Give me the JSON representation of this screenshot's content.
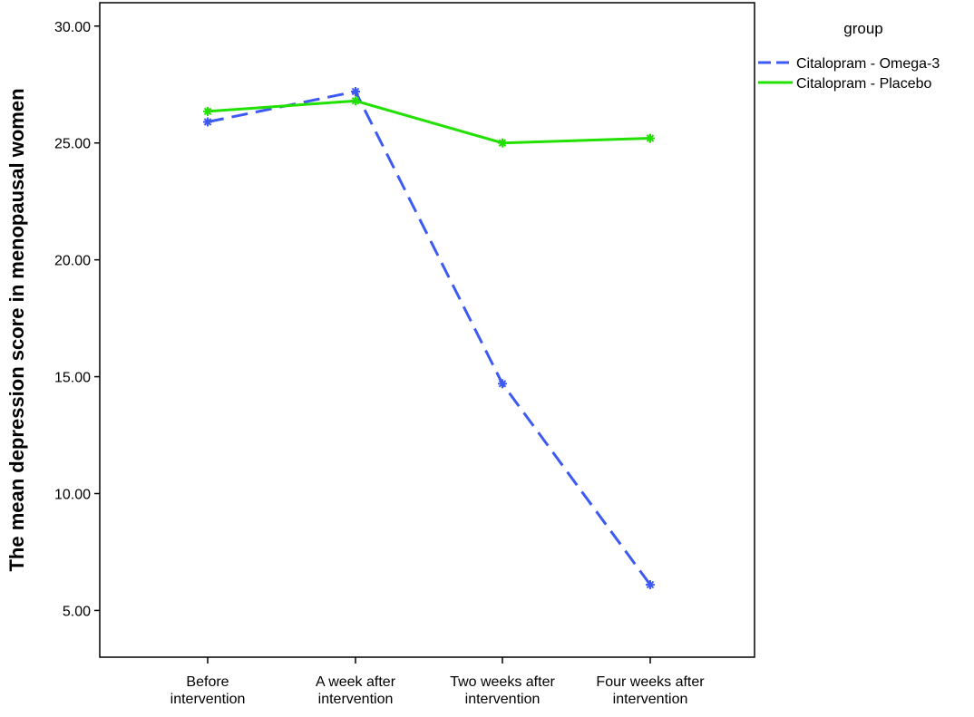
{
  "chart_data": {
    "type": "line",
    "categories": [
      [
        "Before",
        "intervention"
      ],
      [
        "A week after",
        "intervention"
      ],
      [
        "Two weeks after",
        "intervention"
      ],
      [
        "Four weeks after",
        "intervention"
      ]
    ],
    "ylabel": "The mean depression score in menopausal women",
    "xlabel": "",
    "ylim": [
      3.0,
      31.0
    ],
    "yticks": [
      "5.00",
      "10.00",
      "15.00",
      "20.00",
      "25.00",
      "30.00"
    ],
    "grid": false,
    "legend": {
      "title": "group",
      "placement": "top-right outside"
    },
    "series": [
      {
        "name": "Citalopram - Omega-3",
        "values": [
          25.9,
          27.2,
          14.7,
          6.1
        ],
        "color": "#3d5bf2",
        "dash": "dashed"
      },
      {
        "name": "Citalopram - Placebo",
        "values": [
          26.35,
          26.8,
          25.0,
          25.2
        ],
        "color": "#22e000",
        "dash": "solid"
      }
    ]
  }
}
